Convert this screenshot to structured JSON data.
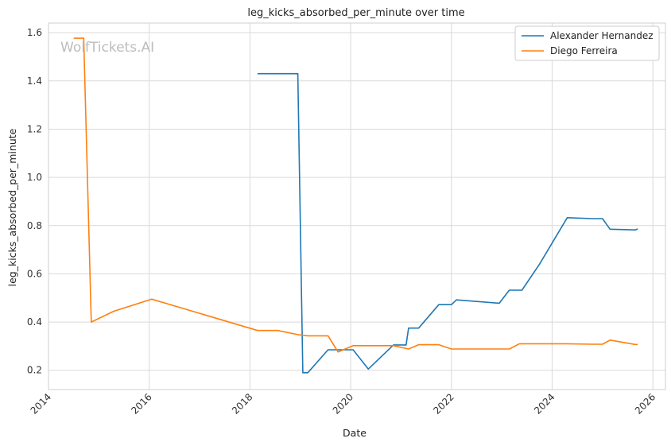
{
  "chart_data": {
    "type": "line",
    "title": "leg_kicks_absorbed_per_minute over time",
    "xlabel": "Date",
    "ylabel": "leg_kicks_absorbed_per_minute",
    "watermark": "WolfTickets.AI",
    "xlim": [
      2014.0,
      2026.25
    ],
    "ylim": [
      0.12,
      1.64
    ],
    "x_ticks": [
      2014,
      2016,
      2018,
      2020,
      2022,
      2024,
      2026
    ],
    "x_tick_labels": [
      "2014",
      "2016",
      "2018",
      "2020",
      "2022",
      "2024",
      "2026"
    ],
    "y_ticks": [
      0.2,
      0.4,
      0.6,
      0.8,
      1.0,
      1.2,
      1.4,
      1.6
    ],
    "y_tick_labels": [
      "0.2",
      "0.4",
      "0.6",
      "0.8",
      "1.0",
      "1.2",
      "1.4",
      "1.6"
    ],
    "grid": true,
    "legend_position": "top-right",
    "series": [
      {
        "name": "Alexander Hernandez",
        "color": "#1f77b4",
        "x": [
          2018.15,
          2018.95,
          2019.05,
          2019.15,
          2019.55,
          2019.75,
          2020.05,
          2020.35,
          2020.85,
          2021.1,
          2021.15,
          2021.35,
          2021.75,
          2022.0,
          2022.1,
          2022.95,
          2023.15,
          2023.4,
          2023.75,
          2024.3,
          2024.8,
          2025.0,
          2025.15,
          2025.65,
          2025.7
        ],
        "y": [
          1.43,
          1.43,
          0.19,
          0.19,
          0.285,
          0.285,
          0.285,
          0.205,
          0.305,
          0.305,
          0.375,
          0.375,
          0.472,
          0.472,
          0.492,
          0.478,
          0.532,
          0.532,
          0.64,
          0.833,
          0.829,
          0.829,
          0.785,
          0.782,
          0.786
        ]
      },
      {
        "name": "Diego Ferreira",
        "color": "#ff7f0e",
        "x": [
          2014.5,
          2014.7,
          2014.85,
          2015.3,
          2016.05,
          2018.15,
          2018.55,
          2018.95,
          2019.15,
          2019.55,
          2019.75,
          2020.05,
          2020.85,
          2021.15,
          2021.35,
          2021.75,
          2022.0,
          2023.15,
          2023.35,
          2024.3,
          2024.8,
          2025.0,
          2025.15,
          2025.65,
          2025.7
        ],
        "y": [
          1.577,
          1.577,
          0.4,
          0.445,
          0.495,
          0.365,
          0.365,
          0.348,
          0.343,
          0.343,
          0.276,
          0.302,
          0.302,
          0.288,
          0.306,
          0.306,
          0.288,
          0.288,
          0.31,
          0.31,
          0.308,
          0.308,
          0.325,
          0.307,
          0.307
        ]
      }
    ]
  }
}
